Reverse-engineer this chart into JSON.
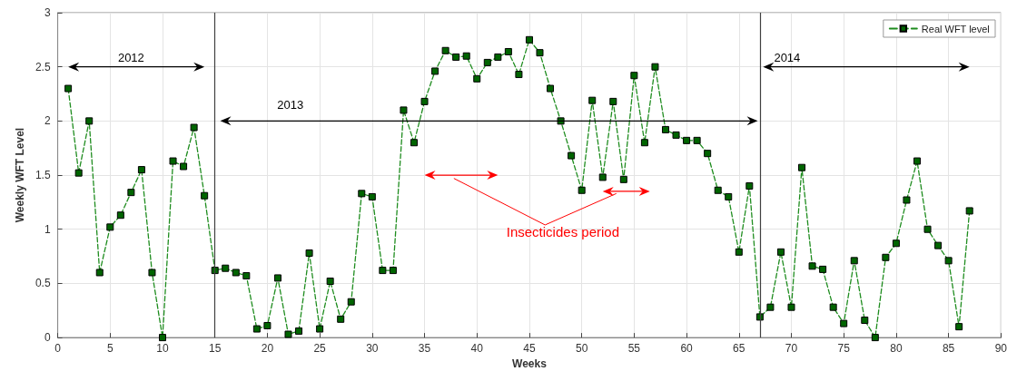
{
  "chart_data": {
    "type": "line",
    "xlabel": "Weeks",
    "ylabel": "Weekly WFT Level",
    "x": [
      1,
      2,
      3,
      4,
      5,
      6,
      7,
      8,
      9,
      10,
      11,
      12,
      13,
      14,
      15,
      16,
      17,
      18,
      19,
      20,
      21,
      22,
      23,
      24,
      25,
      26,
      27,
      28,
      29,
      30,
      31,
      32,
      33,
      34,
      35,
      36,
      37,
      38,
      39,
      40,
      41,
      42,
      43,
      44,
      45,
      46,
      47,
      48,
      49,
      50,
      51,
      52,
      53,
      54,
      55,
      56,
      57,
      58,
      59,
      60,
      61,
      62,
      63,
      64,
      65,
      66,
      67,
      68,
      69,
      70,
      71,
      72,
      73,
      74,
      75,
      76,
      77,
      78,
      79,
      80,
      81,
      82,
      83,
      84,
      85,
      86,
      87
    ],
    "series": [
      {
        "name": "Real WFT level",
        "color": "#1e8c1e",
        "values": [
          2.3,
          1.52,
          2.0,
          0.6,
          1.02,
          1.13,
          1.34,
          1.55,
          0.6,
          0,
          1.63,
          1.58,
          1.94,
          1.31,
          0.62,
          0.64,
          0.6,
          0.57,
          0.08,
          0.11,
          0.55,
          0.03,
          0.06,
          0.78,
          0.08,
          0.52,
          0.17,
          0.33,
          1.33,
          1.3,
          0.62,
          0.62,
          2.1,
          1.8,
          2.18,
          2.46,
          2.65,
          2.59,
          2.6,
          2.39,
          2.54,
          2.59,
          2.64,
          2.43,
          2.75,
          2.63,
          2.3,
          2.0,
          1.68,
          1.36,
          2.19,
          1.48,
          2.18,
          1.46,
          2.42,
          1.8,
          2.5,
          1.92,
          1.87,
          1.82,
          1.82,
          1.7,
          1.36,
          1.3,
          0.79,
          1.4,
          0.19,
          0.28,
          0.79,
          0.28,
          1.57,
          0.66,
          0.63,
          0.28,
          0.13,
          0.71,
          0.16,
          0,
          0.74,
          0.87,
          1.27,
          1.63,
          1.0,
          0.85,
          0.71,
          0.1,
          1.17
        ]
      }
    ],
    "xlim": [
      0,
      90
    ],
    "xticks": [
      0,
      5,
      10,
      15,
      20,
      25,
      30,
      35,
      40,
      45,
      50,
      55,
      60,
      65,
      70,
      75,
      80,
      85,
      90
    ],
    "ylim": [
      0,
      3
    ],
    "yticks": [
      0,
      0.5,
      1,
      1.5,
      2,
      2.5,
      3
    ],
    "ref_lines": [
      {
        "axis": "x",
        "value": 15,
        "color": "#404040"
      },
      {
        "axis": "x",
        "value": 67,
        "color": "#404040"
      }
    ],
    "annotations": [
      "2012",
      "2013",
      "2014",
      "Insecticides period"
    ],
    "grid": true,
    "legend": "top right",
    "marker": "square",
    "line_style": "dashed"
  }
}
